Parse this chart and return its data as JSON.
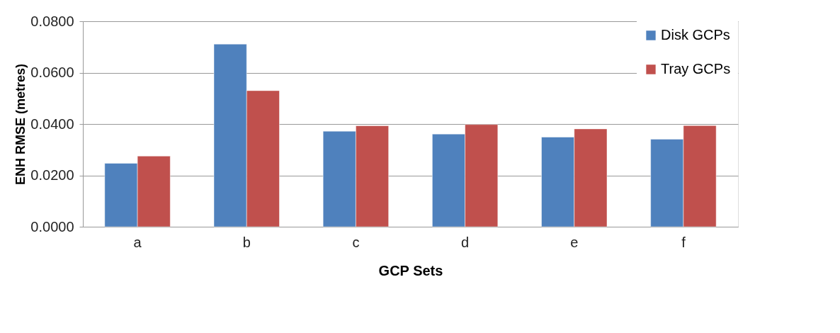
{
  "chart_data": {
    "type": "bar",
    "xlabel": "GCP Sets",
    "ylabel": "ENH RMSE (metres)",
    "categories": [
      "a",
      "b",
      "c",
      "d",
      "e",
      "f"
    ],
    "series": [
      {
        "name": "Disk GCPs",
        "color": "#4f81bd",
        "values": [
          0.0247,
          0.0711,
          0.0372,
          0.0361,
          0.0349,
          0.0341
        ]
      },
      {
        "name": "Tray GCPs",
        "color": "#c0504d",
        "values": [
          0.0275,
          0.053,
          0.0393,
          0.0398,
          0.0381,
          0.0394
        ]
      }
    ],
    "ylim": [
      0,
      0.08
    ],
    "yticks": [
      {
        "value": 0,
        "label": "0.0000"
      },
      {
        "value": 0.02,
        "label": "0.0200"
      },
      {
        "value": 0.04,
        "label": "0.0400"
      },
      {
        "value": 0.06,
        "label": "0.0600"
      },
      {
        "value": 0.08,
        "label": "0.0800"
      }
    ],
    "grid": "y",
    "legend": "top right"
  }
}
